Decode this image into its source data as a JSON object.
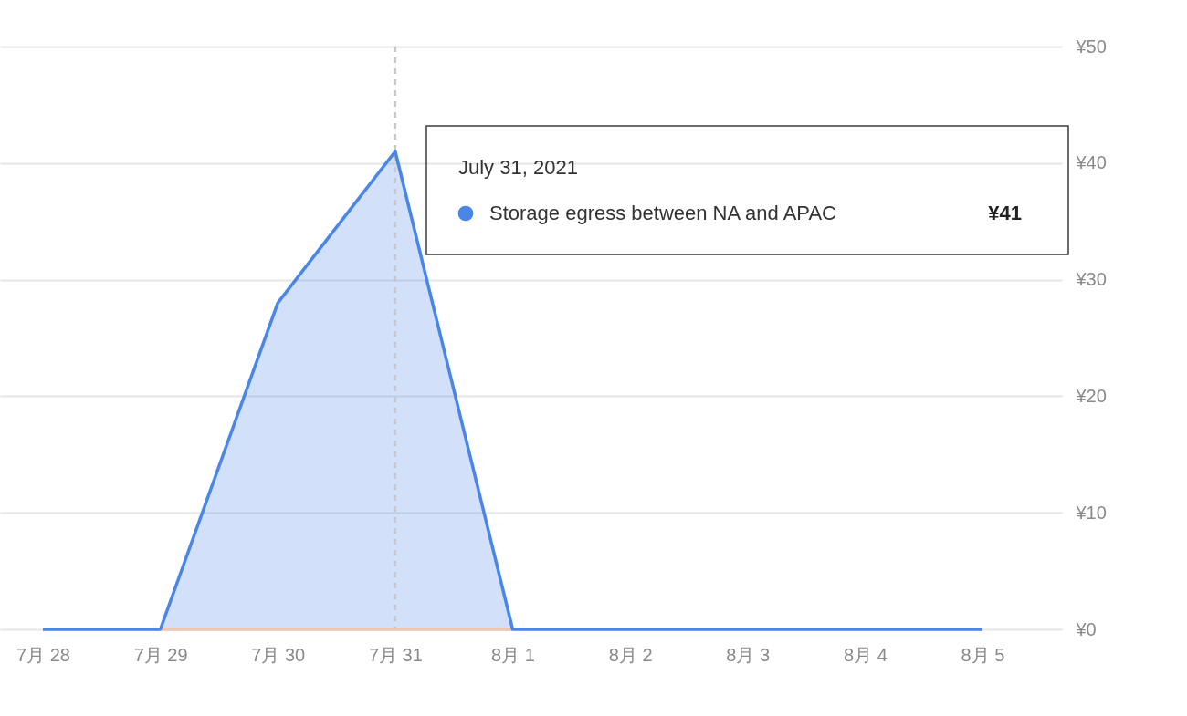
{
  "chart_data": {
    "type": "area",
    "categories": [
      "7月 28",
      "7月 29",
      "7月 30",
      "7月 31",
      "8月 1",
      "8月 2",
      "8月 3",
      "8月 4",
      "8月 5"
    ],
    "series": [
      {
        "type": "line",
        "color": "#f2c6ad",
        "values": [
          null,
          0,
          0,
          0,
          0,
          null,
          null,
          null,
          null
        ]
      },
      {
        "name": "Storage egress between NA and APAC",
        "color": "#4a86e8",
        "values": [
          0,
          0,
          28,
          41,
          0,
          0,
          0,
          0,
          0
        ]
      }
    ],
    "ylim": [
      0,
      50
    ],
    "yticks": [
      {
        "value": 0,
        "label": "¥0"
      },
      {
        "value": 10,
        "label": "¥10"
      },
      {
        "value": 20,
        "label": "¥20"
      },
      {
        "value": 30,
        "label": "¥30"
      },
      {
        "value": 40,
        "label": "¥40"
      },
      {
        "value": 50,
        "label": "¥50"
      }
    ],
    "grid": "y",
    "ref_lines": [
      {
        "axis": "x",
        "value": "7月 31",
        "color": "#c8c8c8",
        "line_style": "dashed"
      }
    ],
    "annotations": [
      "July 31, 2021",
      "¥41"
    ]
  }
}
